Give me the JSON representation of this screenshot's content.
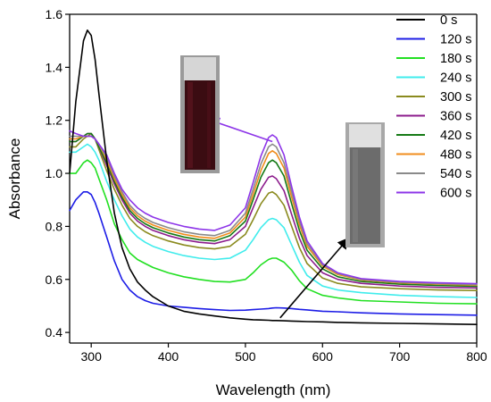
{
  "chart_data": {
    "type": "line",
    "title": "",
    "xlabel": "Wavelength (nm)",
    "ylabel": "Absorbance",
    "xlim": [
      272,
      800
    ],
    "ylim": [
      0.36,
      1.6
    ],
    "xticks": [
      300,
      400,
      500,
      600,
      700,
      800
    ],
    "yticks": [
      0.4,
      0.6,
      0.8,
      1.0,
      1.2,
      1.4,
      1.6
    ],
    "xtick_labels": [
      "300",
      "400",
      "500",
      "600",
      "700",
      "800"
    ],
    "ytick_labels": [
      "0.4",
      "0.6",
      "0.8",
      "1.0",
      "1.2",
      "1.4",
      "1.6"
    ],
    "grid": false,
    "legend_position": "top-right",
    "x": [
      272,
      280,
      290,
      295,
      300,
      305,
      310,
      320,
      330,
      340,
      350,
      360,
      370,
      380,
      400,
      420,
      440,
      460,
      480,
      500,
      510,
      520,
      530,
      535,
      540,
      550,
      560,
      570,
      580,
      600,
      620,
      650,
      700,
      750,
      800
    ],
    "series": [
      {
        "name": "0 s",
        "color": "#000000",
        "values": [
          1.0,
          1.27,
          1.5,
          1.54,
          1.52,
          1.43,
          1.3,
          1.05,
          0.85,
          0.72,
          0.64,
          0.59,
          0.56,
          0.535,
          0.5,
          0.48,
          0.47,
          0.462,
          0.455,
          0.45,
          0.448,
          0.447,
          0.446,
          0.445,
          0.445,
          0.444,
          0.443,
          0.442,
          0.441,
          0.44,
          0.438,
          0.436,
          0.434,
          0.432,
          0.43
        ]
      },
      {
        "name": "120 s",
        "color": "#1c1ce6",
        "values": [
          0.86,
          0.9,
          0.93,
          0.93,
          0.92,
          0.89,
          0.85,
          0.76,
          0.67,
          0.6,
          0.56,
          0.535,
          0.52,
          0.51,
          0.5,
          0.495,
          0.49,
          0.486,
          0.483,
          0.484,
          0.486,
          0.488,
          0.49,
          0.492,
          0.493,
          0.492,
          0.49,
          0.487,
          0.485,
          0.48,
          0.478,
          0.474,
          0.47,
          0.467,
          0.465
        ]
      },
      {
        "name": "180 s",
        "color": "#22e022",
        "values": [
          1.0,
          1.0,
          1.04,
          1.05,
          1.04,
          1.02,
          0.98,
          0.9,
          0.81,
          0.75,
          0.7,
          0.675,
          0.66,
          0.645,
          0.625,
          0.61,
          0.6,
          0.592,
          0.59,
          0.6,
          0.625,
          0.655,
          0.675,
          0.68,
          0.68,
          0.665,
          0.635,
          0.595,
          0.565,
          0.54,
          0.53,
          0.52,
          0.515,
          0.51,
          0.508
        ]
      },
      {
        "name": "240 s",
        "color": "#40ecec",
        "values": [
          1.08,
          1.08,
          1.1,
          1.11,
          1.1,
          1.08,
          1.05,
          0.97,
          0.9,
          0.84,
          0.79,
          0.76,
          0.74,
          0.725,
          0.705,
          0.69,
          0.68,
          0.675,
          0.68,
          0.71,
          0.75,
          0.795,
          0.825,
          0.83,
          0.825,
          0.795,
          0.73,
          0.665,
          0.615,
          0.575,
          0.56,
          0.55,
          0.54,
          0.535,
          0.532
        ]
      },
      {
        "name": "300 s",
        "color": "#8a8a1e",
        "values": [
          1.1,
          1.1,
          1.13,
          1.14,
          1.15,
          1.13,
          1.09,
          1.01,
          0.94,
          0.88,
          0.83,
          0.8,
          0.78,
          0.765,
          0.745,
          0.73,
          0.72,
          0.715,
          0.725,
          0.77,
          0.825,
          0.885,
          0.925,
          0.93,
          0.92,
          0.88,
          0.8,
          0.72,
          0.66,
          0.605,
          0.585,
          0.572,
          0.565,
          0.56,
          0.558
        ]
      },
      {
        "name": "360 s",
        "color": "#8c1c8c",
        "values": [
          1.12,
          1.12,
          1.14,
          1.15,
          1.15,
          1.13,
          1.1,
          1.03,
          0.96,
          0.9,
          0.85,
          0.82,
          0.8,
          0.785,
          0.765,
          0.75,
          0.74,
          0.735,
          0.75,
          0.8,
          0.87,
          0.94,
          0.985,
          0.99,
          0.98,
          0.935,
          0.845,
          0.755,
          0.69,
          0.625,
          0.6,
          0.585,
          0.575,
          0.57,
          0.568
        ]
      },
      {
        "name": "420 s",
        "color": "#157a15",
        "values": [
          1.12,
          1.12,
          1.14,
          1.15,
          1.15,
          1.13,
          1.1,
          1.04,
          0.97,
          0.91,
          0.86,
          0.83,
          0.81,
          0.795,
          0.775,
          0.76,
          0.75,
          0.745,
          0.765,
          0.82,
          0.9,
          0.985,
          1.04,
          1.05,
          1.04,
          0.99,
          0.885,
          0.785,
          0.71,
          0.64,
          0.61,
          0.592,
          0.582,
          0.577,
          0.574
        ]
      },
      {
        "name": "480 s",
        "color": "#f08c1c",
        "values": [
          1.13,
          1.13,
          1.14,
          1.14,
          1.14,
          1.13,
          1.11,
          1.05,
          0.98,
          0.92,
          0.87,
          0.84,
          0.82,
          0.805,
          0.785,
          0.77,
          0.76,
          0.755,
          0.775,
          0.835,
          0.92,
          1.01,
          1.075,
          1.085,
          1.075,
          1.02,
          0.91,
          0.805,
          0.725,
          0.65,
          0.618,
          0.598,
          0.587,
          0.582,
          0.578
        ]
      },
      {
        "name": "540 s",
        "color": "#8a8a8a",
        "values": [
          1.14,
          1.14,
          1.14,
          1.14,
          1.14,
          1.13,
          1.11,
          1.06,
          0.99,
          0.93,
          0.88,
          0.85,
          0.83,
          0.815,
          0.795,
          0.78,
          0.77,
          0.765,
          0.785,
          0.85,
          0.94,
          1.035,
          1.1,
          1.11,
          1.1,
          1.04,
          0.93,
          0.82,
          0.735,
          0.655,
          0.622,
          0.6,
          0.589,
          0.584,
          0.58
        ]
      },
      {
        "name": "600 s",
        "color": "#8d35e8",
        "values": [
          1.16,
          1.15,
          1.14,
          1.14,
          1.14,
          1.13,
          1.11,
          1.07,
          1.0,
          0.94,
          0.9,
          0.87,
          0.85,
          0.835,
          0.815,
          0.8,
          0.79,
          0.785,
          0.805,
          0.87,
          0.965,
          1.065,
          1.135,
          1.145,
          1.135,
          1.07,
          0.95,
          0.835,
          0.745,
          0.66,
          0.625,
          0.603,
          0.592,
          0.587,
          0.584
        ]
      }
    ],
    "annotations": [
      {
        "type": "arrow",
        "from": [
          535,
          1.12
        ],
        "to": [
          455,
          1.2
        ],
        "color": "#8d35e8"
      },
      {
        "type": "arrow",
        "from": [
          545,
          0.455
        ],
        "to": [
          632,
          0.75
        ],
        "color": "#000000"
      }
    ]
  }
}
